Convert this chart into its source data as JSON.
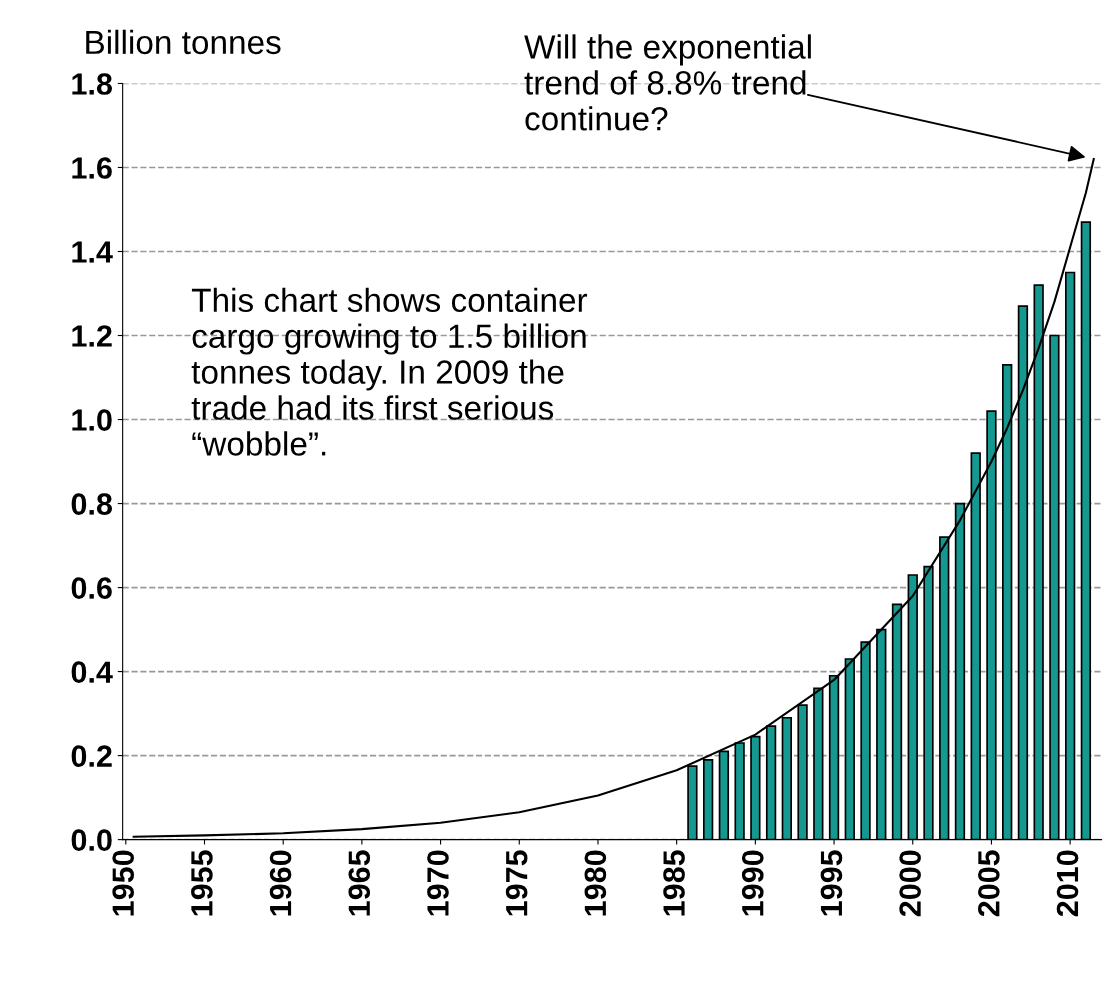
{
  "chart_data": {
    "type": "bar",
    "ylabel": "Billion tonnes",
    "x": [
      1986,
      1987,
      1988,
      1989,
      1990,
      1991,
      1992,
      1993,
      1994,
      1995,
      1996,
      1997,
      1998,
      1999,
      2000,
      2001,
      2002,
      2003,
      2004,
      2005,
      2006,
      2007,
      2008,
      2009,
      2010,
      2011
    ],
    "series": [
      {
        "color": "#149890",
        "values": [
          0.175,
          0.19,
          0.21,
          0.23,
          0.245,
          0.27,
          0.29,
          0.32,
          0.36,
          0.39,
          0.43,
          0.47,
          0.5,
          0.56,
          0.63,
          0.65,
          0.72,
          0.8,
          0.92,
          1.02,
          1.13,
          1.27,
          1.32,
          1.2,
          1.35,
          1.47
        ]
      },
      {
        "type": "line",
        "color": "#000000",
        "x": [
          1950.5,
          1955,
          1960,
          1965,
          1970,
          1975,
          1980,
          1985,
          1990,
          1995,
          2000,
          2003,
          2005,
          2006,
          2007,
          2008,
          2009,
          2010,
          2011,
          2011.5
        ],
        "values": [
          0.007,
          0.01,
          0.015,
          0.025,
          0.04,
          0.065,
          0.105,
          0.165,
          0.25,
          0.38,
          0.58,
          0.76,
          0.9,
          0.98,
          1.07,
          1.17,
          1.28,
          1.41,
          1.54,
          1.62
        ]
      }
    ],
    "xlim": [
      1949.8,
      2012
    ],
    "xticks": [
      1950,
      1955,
      1960,
      1965,
      1970,
      1975,
      1980,
      1985,
      1990,
      1995,
      2000,
      2005,
      2010
    ],
    "ylim": [
      0,
      1.8
    ],
    "yticks": [
      {
        "value": 0,
        "label": "0.0"
      },
      {
        "value": 0.2,
        "label": "0.2"
      },
      {
        "value": 0.4,
        "label": "0.4"
      },
      {
        "value": 0.6,
        "label": "0.6"
      },
      {
        "value": 0.8,
        "label": "0.8"
      },
      {
        "value": 1.0,
        "label": "1.0"
      },
      {
        "value": 1.2,
        "label": "1.2"
      },
      {
        "value": 1.4,
        "label": "1.4"
      },
      {
        "value": 1.6,
        "label": "1.6"
      },
      {
        "value": 1.8,
        "label": "1.8"
      }
    ],
    "grid": "y",
    "line_style": "solid",
    "marker": "none",
    "annotations": [
      "Will the exponential\ntrend of 8.8% trend\ncontinue?",
      "This chart shows container\ncargo growing to 1.5 billion\ntonnes today. In 2009 the\ntrade had its first serious\n“wobble”."
    ]
  }
}
